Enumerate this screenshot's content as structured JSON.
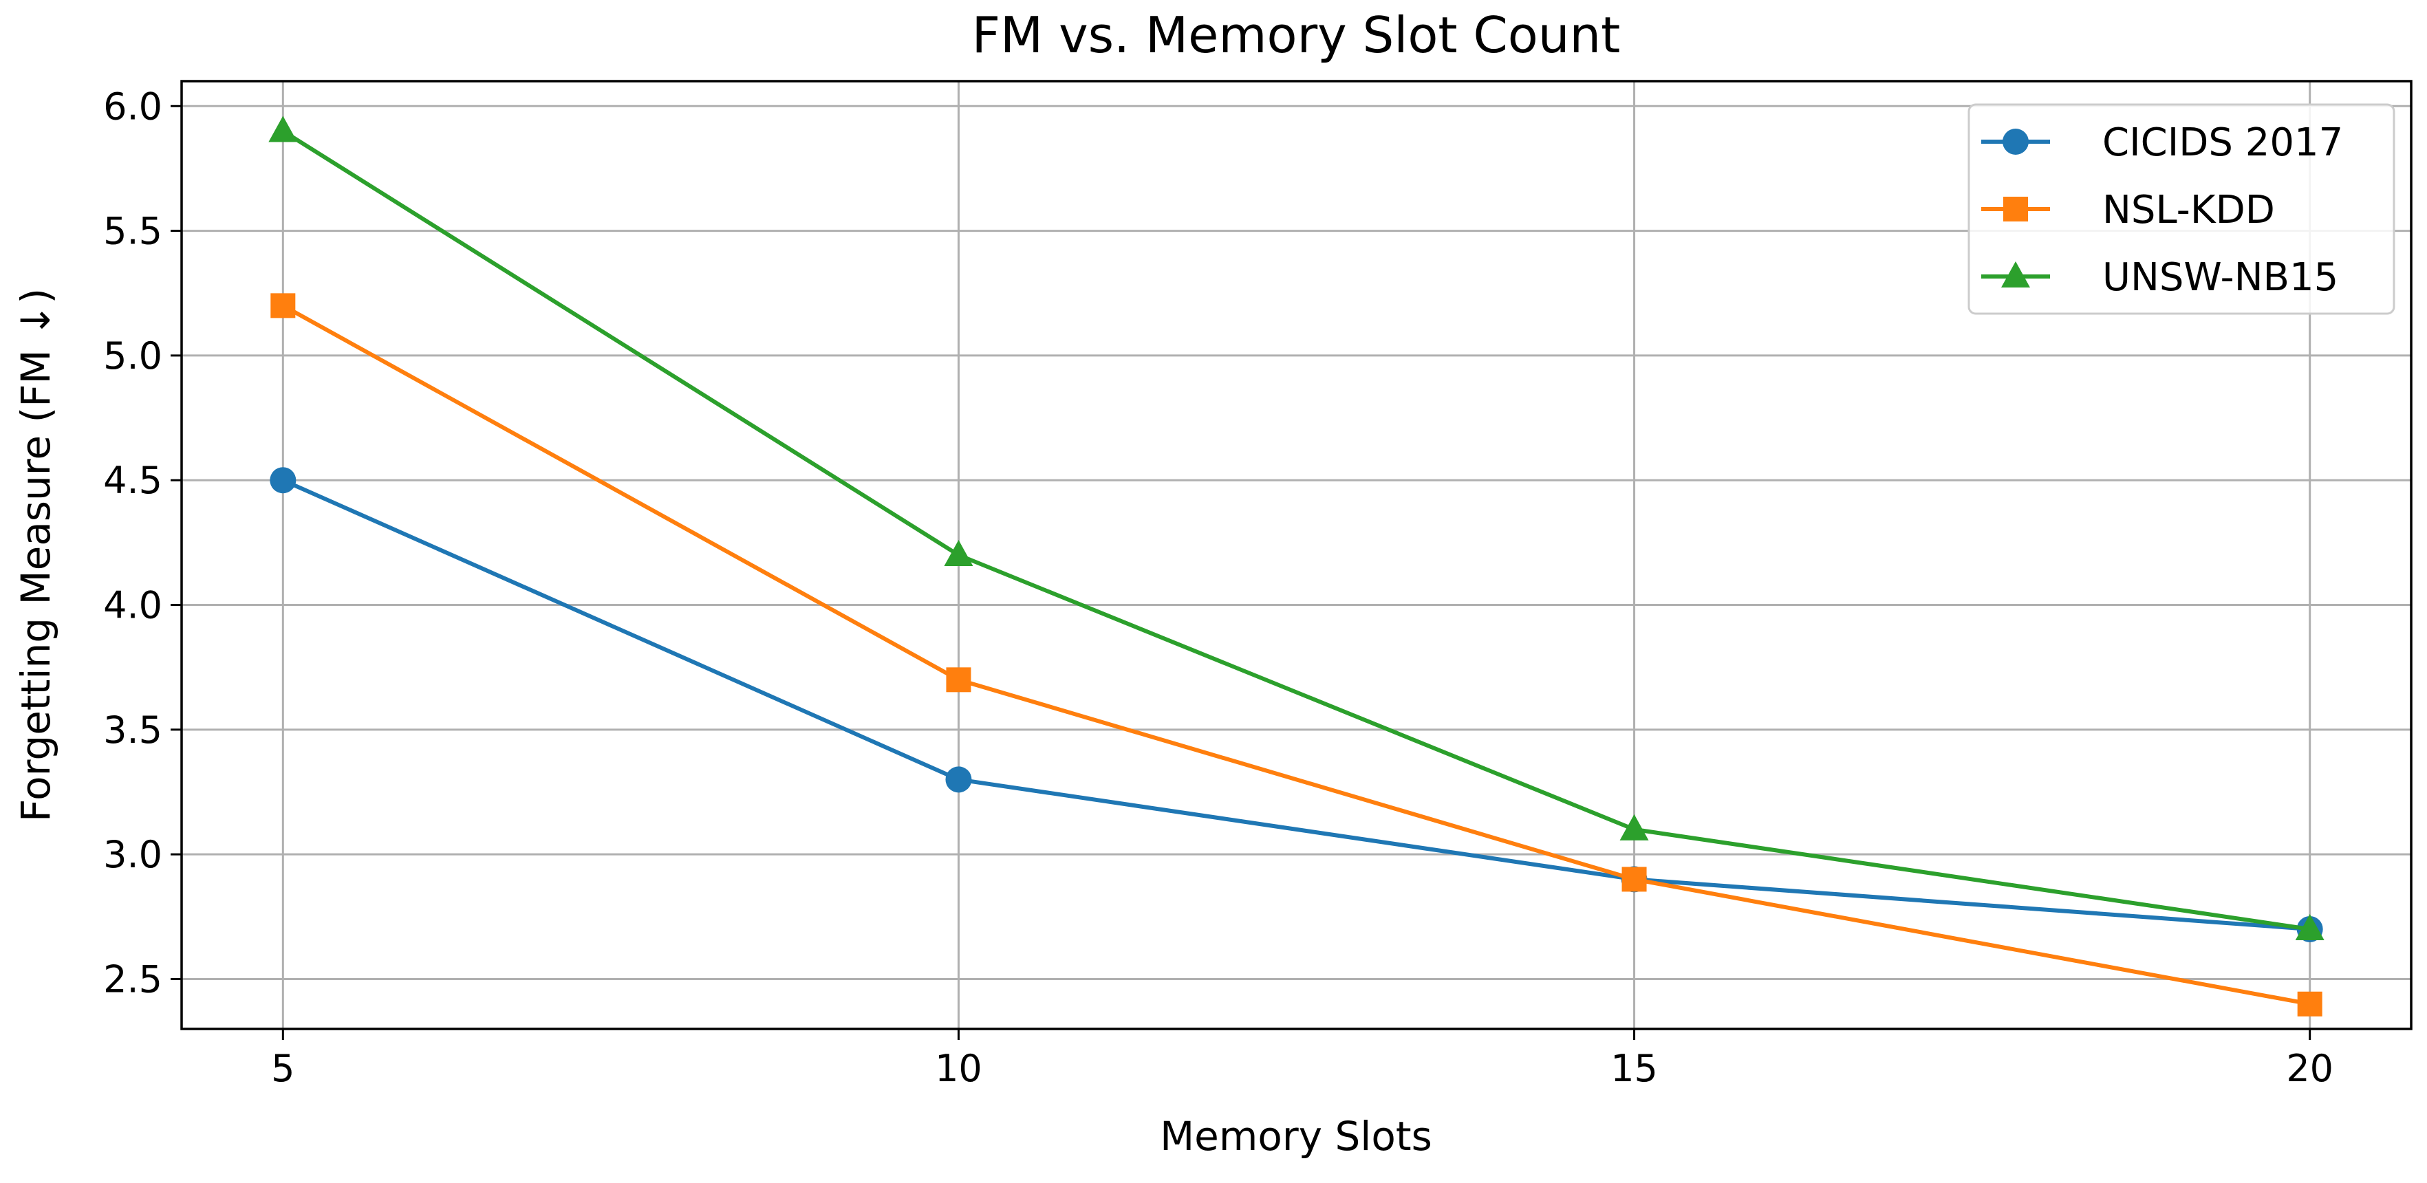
{
  "chart_data": {
    "type": "line",
    "title": "FM vs. Memory Slot Count",
    "xlabel": "Memory Slots",
    "ylabel": "Forgetting Measure (FM ↓)",
    "x": [
      5,
      10,
      15,
      20
    ],
    "xticks": [
      5,
      10,
      15,
      20
    ],
    "yticks": [
      2.5,
      3.0,
      3.5,
      4.0,
      4.5,
      5.0,
      5.5,
      6.0
    ],
    "xlim": [
      4.25,
      20.75
    ],
    "ylim": [
      2.3,
      6.1
    ],
    "grid": true,
    "legend_position": "top-right",
    "series": [
      {
        "name": "CICIDS 2017",
        "values": [
          4.5,
          3.3,
          2.9,
          2.7
        ],
        "color": "#1f77b4",
        "marker": "circle"
      },
      {
        "name": "NSL-KDD",
        "values": [
          5.2,
          3.7,
          2.9,
          2.4
        ],
        "color": "#ff7f0e",
        "marker": "square"
      },
      {
        "name": "UNSW-NB15",
        "values": [
          5.9,
          4.2,
          3.1,
          2.7
        ],
        "color": "#2ca02c",
        "marker": "triangle"
      }
    ]
  }
}
